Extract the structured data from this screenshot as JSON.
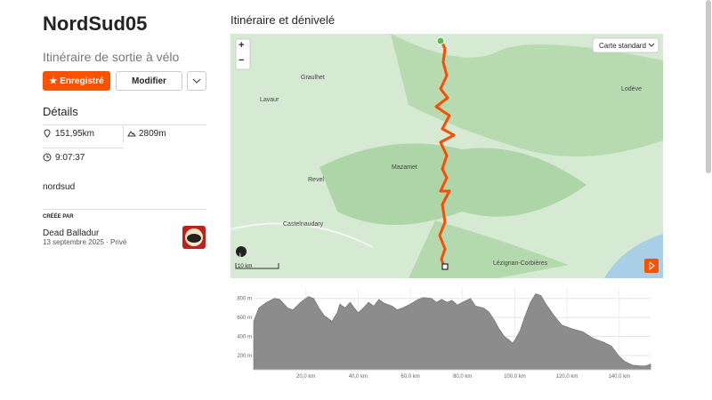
{
  "header": {
    "title": "NordSud05",
    "subtitle": "Itinéraire de sortie à vélo"
  },
  "buttons": {
    "save": "Enregistré",
    "edit": "Modifier"
  },
  "details": {
    "heading": "Détails",
    "distance": "151,95km",
    "elevation_gain": "2809m",
    "duration": "9:07:37",
    "description": "nordsud"
  },
  "creator": {
    "label": "CRÉÉE PAR",
    "name": "Dead Balladur",
    "date_line": "13 septembre 2025 · Privé"
  },
  "map": {
    "heading": "Itinéraire et dénivelé",
    "layer": "Carte standard",
    "scale": "10 km",
    "zoom_in": "+",
    "zoom_out": "−",
    "places": [
      "Graulhet",
      "Lavaur",
      "Lodève",
      "Mazamet",
      "Revel",
      "Castelnaudary",
      "Lézignan-Corbières"
    ]
  },
  "chart_data": {
    "type": "area",
    "color": "#8c8c8c",
    "x": [
      0,
      2,
      5,
      8,
      10,
      13,
      15,
      18,
      21,
      23,
      25,
      27,
      30,
      32,
      33,
      35,
      37,
      38,
      40,
      42,
      44,
      46,
      48,
      50,
      53,
      55,
      57,
      60,
      63,
      65,
      68,
      70,
      72,
      74,
      76,
      78,
      80,
      83,
      85,
      88,
      90,
      92,
      94,
      96,
      98,
      99,
      100,
      102,
      104,
      106,
      108,
      110,
      112,
      115,
      118,
      122,
      126,
      130,
      134,
      137,
      140,
      142,
      145,
      148,
      150,
      152
    ],
    "values": [
      560,
      700,
      760,
      800,
      790,
      700,
      680,
      760,
      820,
      800,
      700,
      620,
      560,
      650,
      740,
      700,
      760,
      720,
      650,
      700,
      760,
      720,
      790,
      750,
      720,
      680,
      700,
      740,
      790,
      810,
      800,
      760,
      790,
      760,
      780,
      730,
      760,
      800,
      720,
      700,
      660,
      580,
      480,
      400,
      360,
      330,
      360,
      460,
      620,
      760,
      850,
      830,
      740,
      620,
      520,
      480,
      450,
      380,
      340,
      300,
      190,
      140,
      100,
      90,
      90,
      110
    ],
    "xlim": [
      0,
      152
    ],
    "ylim": [
      50,
      900
    ],
    "xticks": [
      {
        "value": 20,
        "label": "20,0 km"
      },
      {
        "value": 40,
        "label": "40,0 km"
      },
      {
        "value": 60,
        "label": "60,0 km"
      },
      {
        "value": 80,
        "label": "80,0 km"
      },
      {
        "value": 100,
        "label": "100,0 km"
      },
      {
        "value": 120,
        "label": "120,0 km"
      },
      {
        "value": 140,
        "label": "140,0 km"
      }
    ],
    "yticks": [
      {
        "value": 200,
        "label": "200 m"
      },
      {
        "value": 400,
        "label": "400 m"
      },
      {
        "value": 600,
        "label": "600 m"
      },
      {
        "value": 800,
        "label": "800 m"
      }
    ]
  }
}
